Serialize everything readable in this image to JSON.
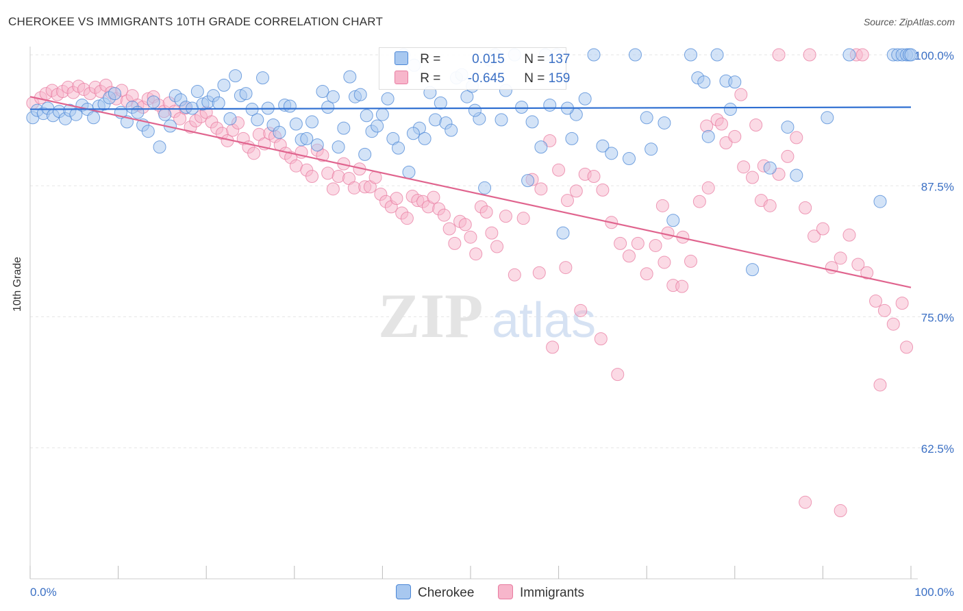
{
  "header": {
    "title": "CHEROKEE VS IMMIGRANTS 10TH GRADE CORRELATION CHART",
    "source": "Source: ZipAtlas.com"
  },
  "legend": {
    "r_label": "R =",
    "n_label": "N =",
    "series1": {
      "r": "0.015",
      "n": "137"
    },
    "series2": {
      "r": "-0.645",
      "n": "159"
    }
  },
  "bottom_legend": {
    "series1": "Cherokee",
    "series2": "Immigrants"
  },
  "colors": {
    "cherokee_fill": "#a8c8f0",
    "cherokee_stroke": "#4a86d6",
    "cherokee_line": "#2f6fd1",
    "immigrants_fill": "#f7b6cb",
    "immigrants_stroke": "#e87ba0",
    "immigrants_line": "#e0648e",
    "tick_label": "#3a6fc4",
    "grid": "#e6e6e6"
  },
  "chart_data": {
    "type": "scatter",
    "title": "CHEROKEE VS IMMIGRANTS 10TH GRADE CORRELATION CHART",
    "xlabel": "",
    "ylabel": "10th Grade",
    "xlim": [
      0,
      100
    ],
    "ylim": [
      50,
      100
    ],
    "x_tick_labels": [
      "0.0%",
      "100.0%"
    ],
    "y_ticks": [
      62.5,
      75,
      87.5,
      100
    ],
    "y_tick_labels": [
      "62.5%",
      "75.0%",
      "87.5%",
      "100.0%"
    ],
    "grid": true,
    "legend_position": "top-center",
    "series": [
      {
        "name": "Cherokee",
        "r": 0.015,
        "n": 137,
        "trend": {
          "x": [
            0,
            100
          ],
          "y": [
            94.8,
            95.0
          ]
        },
        "points": [
          [
            0.3,
            94.0
          ],
          [
            0.8,
            94.7
          ],
          [
            1.5,
            94.4
          ],
          [
            2.0,
            94.9
          ],
          [
            2.6,
            94.2
          ],
          [
            3.3,
            94.6
          ],
          [
            4.0,
            93.9
          ],
          [
            4.5,
            94.7
          ],
          [
            5.2,
            94.3
          ],
          [
            5.9,
            95.2
          ],
          [
            6.5,
            94.8
          ],
          [
            7.2,
            94.0
          ],
          [
            7.8,
            95.1
          ],
          [
            8.4,
            95.3
          ],
          [
            9.0,
            95.9
          ],
          [
            9.6,
            96.3
          ],
          [
            10.3,
            94.5
          ],
          [
            11.0,
            93.6
          ],
          [
            11.6,
            95.0
          ],
          [
            12.2,
            94.5
          ],
          [
            12.8,
            93.3
          ],
          [
            13.4,
            92.7
          ],
          [
            14.0,
            95.5
          ],
          [
            14.7,
            91.2
          ],
          [
            15.3,
            94.3
          ],
          [
            15.9,
            93.2
          ],
          [
            16.5,
            96.1
          ],
          [
            17.1,
            95.7
          ],
          [
            17.7,
            95.0
          ],
          [
            18.4,
            94.9
          ],
          [
            19.0,
            96.5
          ],
          [
            19.6,
            95.3
          ],
          [
            20.2,
            95.5
          ],
          [
            20.8,
            96.1
          ],
          [
            21.4,
            95.4
          ],
          [
            22.0,
            97.1
          ],
          [
            22.7,
            93.9
          ],
          [
            23.3,
            98.0
          ],
          [
            23.9,
            96.1
          ],
          [
            24.5,
            96.3
          ],
          [
            25.2,
            94.8
          ],
          [
            25.8,
            93.8
          ],
          [
            26.4,
            97.8
          ],
          [
            27.0,
            94.9
          ],
          [
            27.6,
            93.3
          ],
          [
            28.3,
            92.6
          ],
          [
            28.9,
            95.2
          ],
          [
            29.5,
            95.1
          ],
          [
            30.2,
            93.4
          ],
          [
            30.8,
            91.9
          ],
          [
            31.4,
            92.0
          ],
          [
            32.0,
            93.6
          ],
          [
            32.6,
            91.4
          ],
          [
            33.2,
            96.5
          ],
          [
            33.8,
            95.0
          ],
          [
            34.4,
            96.0
          ],
          [
            35.0,
            91.2
          ],
          [
            35.6,
            93.0
          ],
          [
            36.3,
            97.9
          ],
          [
            36.9,
            96.0
          ],
          [
            37.5,
            96.2
          ],
          [
            38.2,
            94.2
          ],
          [
            38.8,
            92.7
          ],
          [
            39.4,
            93.2
          ],
          [
            40.0,
            94.3
          ],
          [
            40.6,
            95.8
          ],
          [
            41.2,
            92.0
          ],
          [
            41.8,
            91.1
          ],
          [
            42.4,
            100.0
          ],
          [
            43.0,
            88.8
          ],
          [
            43.6,
            99.0
          ],
          [
            44.2,
            93.0
          ],
          [
            44.8,
            92.0
          ],
          [
            45.4,
            96.4
          ],
          [
            46.0,
            93.8
          ],
          [
            46.6,
            95.4
          ],
          [
            47.2,
            93.5
          ],
          [
            47.8,
            92.8
          ],
          [
            48.4,
            97.8
          ],
          [
            49.0,
            98.1
          ],
          [
            49.6,
            96.0
          ],
          [
            50.2,
            97.0
          ],
          [
            51.0,
            93.9
          ],
          [
            51.6,
            87.3
          ],
          [
            52.2,
            99.5
          ],
          [
            52.8,
            100.0
          ],
          [
            53.5,
            93.8
          ],
          [
            54.0,
            96.6
          ],
          [
            55.0,
            100.0
          ],
          [
            55.8,
            95.0
          ],
          [
            56.5,
            88.0
          ],
          [
            57.0,
            93.6
          ],
          [
            58.0,
            91.2
          ],
          [
            58.5,
            100.0
          ],
          [
            59.0,
            95.2
          ],
          [
            59.8,
            100.0
          ],
          [
            60.5,
            83.0
          ],
          [
            61.5,
            92.0
          ],
          [
            62.0,
            94.3
          ],
          [
            63.0,
            95.8
          ],
          [
            64.0,
            100.0
          ],
          [
            65.0,
            91.3
          ],
          [
            66.0,
            90.6
          ],
          [
            68.0,
            90.1
          ],
          [
            68.7,
            100.0
          ],
          [
            70.0,
            94.0
          ],
          [
            70.5,
            91.0
          ],
          [
            72.0,
            93.5
          ],
          [
            73.0,
            84.2
          ],
          [
            75.0,
            100.0
          ],
          [
            75.8,
            97.8
          ],
          [
            76.5,
            97.4
          ],
          [
            77.0,
            92.2
          ],
          [
            78.0,
            100.0
          ],
          [
            79.0,
            97.5
          ],
          [
            80.0,
            97.4
          ],
          [
            82.0,
            79.5
          ],
          [
            84.0,
            89.2
          ],
          [
            86.0,
            93.1
          ],
          [
            87.0,
            88.5
          ],
          [
            93.0,
            100.0
          ],
          [
            98.0,
            100.0
          ],
          [
            98.5,
            100.0
          ],
          [
            99.0,
            100.0
          ],
          [
            99.5,
            100.0
          ],
          [
            99.8,
            100.0
          ],
          [
            100.0,
            100.0
          ],
          [
            96.5,
            86.0
          ],
          [
            90.5,
            94.0
          ],
          [
            79.5,
            94.8
          ],
          [
            61.0,
            94.9
          ],
          [
            50.5,
            94.7
          ],
          [
            43.5,
            92.5
          ],
          [
            38.0,
            90.5
          ]
        ]
      },
      {
        "name": "Immigrants",
        "r": -0.645,
        "n": 159,
        "trend": {
          "x": [
            0,
            100
          ],
          "y": [
            96.0,
            77.8
          ]
        },
        "points": [
          [
            0.3,
            95.4
          ],
          [
            1.2,
            95.9
          ],
          [
            1.8,
            96.3
          ],
          [
            2.5,
            96.6
          ],
          [
            3.1,
            96.2
          ],
          [
            3.7,
            96.5
          ],
          [
            4.3,
            96.9
          ],
          [
            4.9,
            96.4
          ],
          [
            5.5,
            97.0
          ],
          [
            6.1,
            96.7
          ],
          [
            6.8,
            96.3
          ],
          [
            7.4,
            96.9
          ],
          [
            8.0,
            96.5
          ],
          [
            8.6,
            97.1
          ],
          [
            9.2,
            96.4
          ],
          [
            9.8,
            95.8
          ],
          [
            10.4,
            96.6
          ],
          [
            11.0,
            95.6
          ],
          [
            11.6,
            96.1
          ],
          [
            12.2,
            95.2
          ],
          [
            12.8,
            95.0
          ],
          [
            13.4,
            95.8
          ],
          [
            14.0,
            96.0
          ],
          [
            14.6,
            95.2
          ],
          [
            15.2,
            94.6
          ],
          [
            15.8,
            95.4
          ],
          [
            16.4,
            94.6
          ],
          [
            17.0,
            93.9
          ],
          [
            17.6,
            94.9
          ],
          [
            18.2,
            93.1
          ],
          [
            18.8,
            93.7
          ],
          [
            19.4,
            94.1
          ],
          [
            20.0,
            94.5
          ],
          [
            20.6,
            93.6
          ],
          [
            21.2,
            93.0
          ],
          [
            21.8,
            92.5
          ],
          [
            22.4,
            91.8
          ],
          [
            23.0,
            92.8
          ],
          [
            23.6,
            93.5
          ],
          [
            24.2,
            92.0
          ],
          [
            24.8,
            91.2
          ],
          [
            25.4,
            90.6
          ],
          [
            26.0,
            92.4
          ],
          [
            26.6,
            91.5
          ],
          [
            27.2,
            92.5
          ],
          [
            27.8,
            92.2
          ],
          [
            28.4,
            91.4
          ],
          [
            29.0,
            90.6
          ],
          [
            29.6,
            90.2
          ],
          [
            30.2,
            89.4
          ],
          [
            30.8,
            90.7
          ],
          [
            31.4,
            89.0
          ],
          [
            32.0,
            88.4
          ],
          [
            32.6,
            90.9
          ],
          [
            33.2,
            90.4
          ],
          [
            33.8,
            88.7
          ],
          [
            34.4,
            87.2
          ],
          [
            35.0,
            88.4
          ],
          [
            35.6,
            89.6
          ],
          [
            36.2,
            88.2
          ],
          [
            36.8,
            87.3
          ],
          [
            37.4,
            89.1
          ],
          [
            38.0,
            87.4
          ],
          [
            38.6,
            87.4
          ],
          [
            39.2,
            88.3
          ],
          [
            39.8,
            86.7
          ],
          [
            40.4,
            86.0
          ],
          [
            41.0,
            85.5
          ],
          [
            41.6,
            86.3
          ],
          [
            42.2,
            84.9
          ],
          [
            42.8,
            84.4
          ],
          [
            43.4,
            86.5
          ],
          [
            44.0,
            86.1
          ],
          [
            44.6,
            86.0
          ],
          [
            45.2,
            85.5
          ],
          [
            45.8,
            86.4
          ],
          [
            46.4,
            85.3
          ],
          [
            47.0,
            84.7
          ],
          [
            47.6,
            83.4
          ],
          [
            48.2,
            82.0
          ],
          [
            48.8,
            84.1
          ],
          [
            49.4,
            83.8
          ],
          [
            50.0,
            82.6
          ],
          [
            50.6,
            81.0
          ],
          [
            51.2,
            85.5
          ],
          [
            51.8,
            85.0
          ],
          [
            52.4,
            83.0
          ],
          [
            53.0,
            81.7
          ],
          [
            54.0,
            84.6
          ],
          [
            55.0,
            79.0
          ],
          [
            56.0,
            84.4
          ],
          [
            57.0,
            88.1
          ],
          [
            58.0,
            87.2
          ],
          [
            59.0,
            91.8
          ],
          [
            60.0,
            89.0
          ],
          [
            61.0,
            86.1
          ],
          [
            62.0,
            87.0
          ],
          [
            63.0,
            88.6
          ],
          [
            64.0,
            88.4
          ],
          [
            65.0,
            87.1
          ],
          [
            66.0,
            84.0
          ],
          [
            67.0,
            82.0
          ],
          [
            68.0,
            80.8
          ],
          [
            69.0,
            82.0
          ],
          [
            70.0,
            79.1
          ],
          [
            71.0,
            81.8
          ],
          [
            72.0,
            80.2
          ],
          [
            73.0,
            78.0
          ],
          [
            74.0,
            77.9
          ],
          [
            75.0,
            80.3
          ],
          [
            76.0,
            86.0
          ],
          [
            77.0,
            87.3
          ],
          [
            78.0,
            93.8
          ],
          [
            79.0,
            91.6
          ],
          [
            80.0,
            92.2
          ],
          [
            81.0,
            89.3
          ],
          [
            82.0,
            88.3
          ],
          [
            83.0,
            86.1
          ],
          [
            84.0,
            85.6
          ],
          [
            85.0,
            88.6
          ],
          [
            86.0,
            90.3
          ],
          [
            87.0,
            92.1
          ],
          [
            88.0,
            85.4
          ],
          [
            89.0,
            82.7
          ],
          [
            90.0,
            83.4
          ],
          [
            91.0,
            79.7
          ],
          [
            92.0,
            80.6
          ],
          [
            93.0,
            82.8
          ],
          [
            94.0,
            80.0
          ],
          [
            95.0,
            79.2
          ],
          [
            96.0,
            76.5
          ],
          [
            97.0,
            75.6
          ],
          [
            98.0,
            74.3
          ],
          [
            99.0,
            76.3
          ],
          [
            99.5,
            72.1
          ],
          [
            96.5,
            68.5
          ],
          [
            92.0,
            56.5
          ],
          [
            88.0,
            57.3
          ],
          [
            85.0,
            100.0
          ],
          [
            88.5,
            100.0
          ],
          [
            93.8,
            100.0
          ],
          [
            94.5,
            100.0
          ],
          [
            57.8,
            79.2
          ],
          [
            59.3,
            72.1
          ],
          [
            60.8,
            79.7
          ],
          [
            62.5,
            75.6
          ],
          [
            64.8,
            72.9
          ],
          [
            66.7,
            69.5
          ],
          [
            71.8,
            85.6
          ],
          [
            72.4,
            83.0
          ],
          [
            74.1,
            82.6
          ],
          [
            76.8,
            93.2
          ],
          [
            78.5,
            93.4
          ],
          [
            80.7,
            96.2
          ],
          [
            82.4,
            93.3
          ],
          [
            83.3,
            89.4
          ]
        ]
      }
    ]
  }
}
